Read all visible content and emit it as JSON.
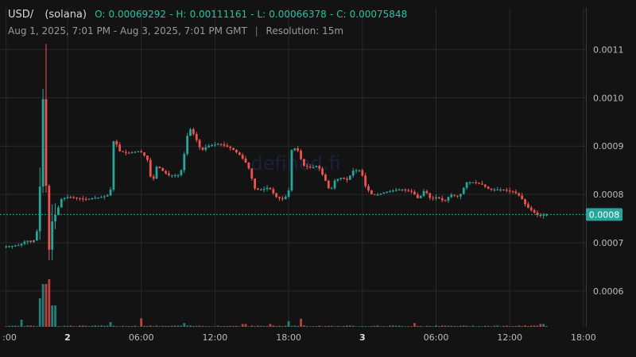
{
  "header": {
    "symbol": "USD/",
    "network": "(solana)",
    "ohlc": {
      "open_label": "O:",
      "open": "0.00069292",
      "high_label": "H:",
      "high": "0.00111161",
      "low_label": "L:",
      "low": "0.00066378",
      "close_label": "C:",
      "close": "0.00075848"
    },
    "date_range": "Aug 1, 2025, 7:01 PM - Aug 3, 2025, 7:01 PM GMT",
    "divider": "|",
    "resolution": "Resolution: 15m"
  },
  "watermark": "defined.fi",
  "colors": {
    "background": "#131313",
    "up": "#26a69a",
    "down": "#ef5350",
    "grid": "#2a2a2a",
    "price_tag": "#26a69a"
  },
  "chart_data": {
    "type": "candlestick",
    "y_ticks": [
      "0.0011",
      "0.0010",
      "0.0009",
      "0.0008",
      "0.0007",
      "0.0006"
    ],
    "y_tick_values": [
      0.0011,
      0.001,
      0.0009,
      0.0008,
      0.0007,
      0.0006
    ],
    "ylim": [
      0.000526,
      0.001186
    ],
    "x_ticks": [
      ":00",
      "2",
      "06:00",
      "12:00",
      "18:00",
      "3",
      "06:00",
      "12:00",
      "18:00"
    ],
    "x_tick_hours": [
      0,
      5,
      11,
      17,
      23,
      29,
      35,
      41,
      47
    ],
    "bold_x_ticks": [
      "2",
      "3"
    ],
    "current_price": 0.00075848,
    "current_price_label": "0.0008",
    "grid": true,
    "anchors": [
      [
        0,
        0.000692
      ],
      [
        1.2,
        0.000695
      ],
      [
        1.8,
        0.000705
      ],
      [
        2.3,
        0.0007
      ],
      [
        2.6,
        0.00072
      ],
      [
        2.8,
        0.00075
      ],
      [
        3.1,
        0.001015
      ],
      [
        3.4,
        0.0008
      ],
      [
        3.6,
        0.00068
      ],
      [
        3.9,
        0.00075
      ],
      [
        4.2,
        0.00076
      ],
      [
        4.6,
        0.00079
      ],
      [
        5.2,
        0.000795
      ],
      [
        6.5,
        0.00079
      ],
      [
        8.0,
        0.000795
      ],
      [
        8.6,
        0.0008
      ],
      [
        8.9,
        0.00092
      ],
      [
        9.3,
        0.00089
      ],
      [
        10.0,
        0.000885
      ],
      [
        11.0,
        0.00089
      ],
      [
        11.6,
        0.000875
      ],
      [
        12.0,
        0.00082
      ],
      [
        12.4,
        0.00086
      ],
      [
        12.8,
        0.00085
      ],
      [
        13.3,
        0.00084
      ],
      [
        14.3,
        0.00084
      ],
      [
        14.6,
        0.00088
      ],
      [
        15.0,
        0.00094
      ],
      [
        15.5,
        0.00092
      ],
      [
        16.0,
        0.00089
      ],
      [
        16.5,
        0.0009
      ],
      [
        17.5,
        0.000905
      ],
      [
        18.5,
        0.000895
      ],
      [
        19.2,
        0.00088
      ],
      [
        19.8,
        0.00086
      ],
      [
        20.4,
        0.00081
      ],
      [
        21.0,
        0.00081
      ],
      [
        21.5,
        0.000815
      ],
      [
        22.1,
        0.000795
      ],
      [
        22.6,
        0.00079
      ],
      [
        23.1,
        0.0008
      ],
      [
        23.4,
        0.0009
      ],
      [
        23.9,
        0.00089
      ],
      [
        24.3,
        0.00086
      ],
      [
        25.0,
        0.000855
      ],
      [
        25.5,
        0.00086
      ],
      [
        26.1,
        0.00083
      ],
      [
        26.5,
        0.000805
      ],
      [
        26.9,
        0.00083
      ],
      [
        27.4,
        0.000835
      ],
      [
        27.9,
        0.00083
      ],
      [
        28.4,
        0.00085
      ],
      [
        29.0,
        0.00085
      ],
      [
        29.4,
        0.000815
      ],
      [
        29.9,
        0.0008
      ],
      [
        30.4,
        0.0008
      ],
      [
        31.0,
        0.000805
      ],
      [
        32.0,
        0.00081
      ],
      [
        32.5,
        0.00081
      ],
      [
        33.2,
        0.000805
      ],
      [
        33.7,
        0.00079
      ],
      [
        34.2,
        0.00081
      ],
      [
        34.7,
        0.00079
      ],
      [
        35.2,
        0.000795
      ],
      [
        35.8,
        0.000785
      ],
      [
        36.3,
        0.0008
      ],
      [
        37.0,
        0.000795
      ],
      [
        37.6,
        0.000825
      ],
      [
        38.3,
        0.000825
      ],
      [
        38.9,
        0.00082
      ],
      [
        39.5,
        0.00081
      ],
      [
        40.5,
        0.00081
      ],
      [
        41.5,
        0.000805
      ],
      [
        42.0,
        0.000795
      ],
      [
        42.5,
        0.000775
      ],
      [
        43.0,
        0.000765
      ],
      [
        43.5,
        0.000755
      ],
      [
        44.0,
        0.000758
      ]
    ],
    "volume_spikes": [
      [
        3.1,
        0.9
      ],
      [
        3.5,
        1.0
      ],
      [
        2.8,
        0.6
      ],
      [
        3.8,
        0.45
      ],
      [
        4.1,
        0.45
      ],
      [
        1.3,
        0.15
      ],
      [
        8.5,
        0.1
      ],
      [
        11.0,
        0.18
      ],
      [
        14.4,
        0.08
      ],
      [
        19.4,
        0.06
      ],
      [
        21.5,
        0.06
      ],
      [
        23.0,
        0.12
      ],
      [
        24.0,
        0.17
      ],
      [
        33.2,
        0.08
      ],
      [
        43.6,
        0.06
      ]
    ]
  }
}
